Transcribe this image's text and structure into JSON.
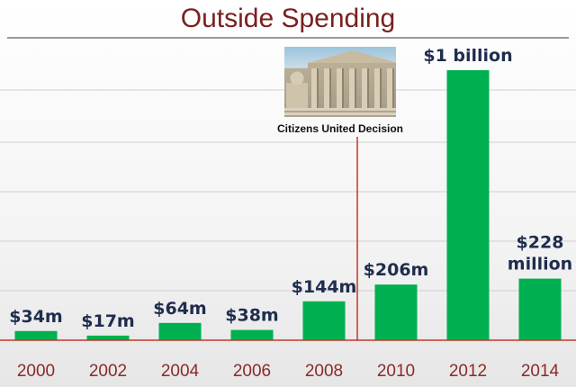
{
  "title": "Outside Spending",
  "annotation": {
    "label": "Citizens United Decision",
    "position_category": "2010",
    "line_color": "#c0392b",
    "image_icon": "supreme-court-building-photo"
  },
  "colors": {
    "bar": "#00b050",
    "title": "#7a2020",
    "tick_label": "#8b2a2a",
    "value_label": "#1f2d4d",
    "baseline": "#c0392b",
    "grid": "#d0d0d0"
  },
  "chart_data": {
    "type": "bar",
    "title": "Outside Spending",
    "categories": [
      "2000",
      "2002",
      "2004",
      "2006",
      "2008",
      "2010",
      "2012",
      "2014"
    ],
    "values": [
      34,
      17,
      64,
      38,
      144,
      206,
      1000,
      228
    ],
    "unit": "million USD",
    "data_labels": [
      "$34m",
      "$17m",
      "$64m",
      "$38m",
      "$144m",
      "$206m",
      "$1 billion",
      "$228\nmillion"
    ],
    "xlabel": "",
    "ylabel": "",
    "ylim": [
      0,
      1100
    ],
    "grid": true,
    "legend": "none"
  }
}
